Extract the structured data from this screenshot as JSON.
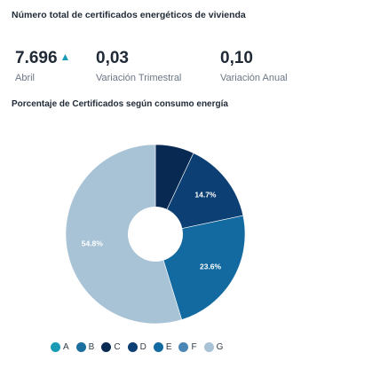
{
  "header": {
    "title": "Número total de certificados energéticos de vivienda"
  },
  "kpis": [
    {
      "value": "7.696",
      "trend": "▲",
      "label": "Abril"
    },
    {
      "value": "0,03",
      "label": "Variación Trimestral"
    },
    {
      "value": "0,10",
      "label": "Variación Anual"
    }
  ],
  "chart_title": "Porcentaje de Certificados según consumo energía",
  "chart_data": {
    "type": "pie",
    "donut": true,
    "categories": [
      "A",
      "B",
      "C",
      "D",
      "E",
      "F",
      "G"
    ],
    "values": [
      0,
      0,
      7.0,
      14.7,
      23.6,
      0,
      54.8
    ],
    "labels": [
      "",
      "",
      "",
      "14.7%",
      "23.6%",
      "",
      "54.8%"
    ],
    "colors": [
      "#1a9bb5",
      "#1b6f9e",
      "#082a52",
      "#0c3f73",
      "#126aa0",
      "#4b86b5",
      "#a8c2d6"
    ],
    "legend_position": "bottom"
  }
}
